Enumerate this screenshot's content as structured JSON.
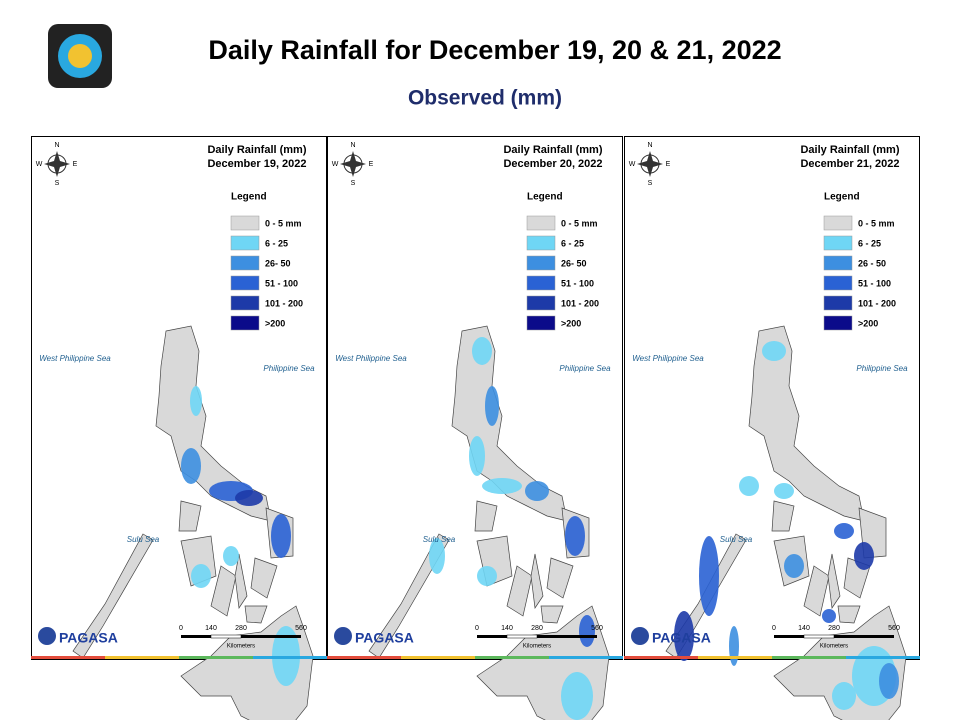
{
  "header": {
    "title": "Daily Rainfall for December 19, 20 & 21, 2022",
    "subtitle": "Observed (mm)"
  },
  "panels": [
    {
      "title": "Daily Rainfall (mm)",
      "date": "December 19, 2022",
      "legend_title": "Legend",
      "legend": [
        {
          "label": "0 - 5 mm",
          "color": "#d9d9d9"
        },
        {
          "label": "6 - 25",
          "color": "#6fd6f5"
        },
        {
          "label": "26- 50",
          "color": "#3d8fe0"
        },
        {
          "label": "51 - 100",
          "color": "#2a62d4"
        },
        {
          "label": "101 - 200",
          "color": "#1d3aa8"
        },
        {
          "label": ">200",
          "color": "#0b0b8a"
        }
      ],
      "seas": [
        "West Philippine Sea",
        "Philippine Sea",
        "Sulu Sea"
      ],
      "compass": [
        "N",
        "E",
        "S",
        "W"
      ],
      "scale": [
        "0",
        "140",
        "280",
        "560"
      ],
      "scale_unit": "Kilometers",
      "logo": "PAGASA"
    },
    {
      "title": "Daily Rainfall (mm)",
      "date": "December 20, 2022",
      "legend_title": "Legend",
      "legend": [
        {
          "label": "0 - 5 mm",
          "color": "#d9d9d9"
        },
        {
          "label": "6 - 25",
          "color": "#6fd6f5"
        },
        {
          "label": "26- 50",
          "color": "#3d8fe0"
        },
        {
          "label": "51 - 100",
          "color": "#2a62d4"
        },
        {
          "label": "101 - 200",
          "color": "#1d3aa8"
        },
        {
          "label": ">200",
          "color": "#0b0b8a"
        }
      ],
      "seas": [
        "West Philippine Sea",
        "Philippine Sea",
        "Sulu Sea"
      ],
      "compass": [
        "N",
        "E",
        "S",
        "W"
      ],
      "scale": [
        "0",
        "140",
        "280",
        "560"
      ],
      "scale_unit": "Kilometers",
      "logo": "PAGASA"
    },
    {
      "title": "Daily Rainfall (mm)",
      "date": "December 21, 2022",
      "legend_title": "Legend",
      "legend": [
        {
          "label": "0 - 5 mm",
          "color": "#d9d9d9"
        },
        {
          "label": "6 - 25",
          "color": "#6fd6f5"
        },
        {
          "label": "26 - 50",
          "color": "#3d8fe0"
        },
        {
          "label": "51 - 100",
          "color": "#2a62d4"
        },
        {
          "label": "101 - 200",
          "color": "#1d3aa8"
        },
        {
          "label": ">200",
          "color": "#0b0b8a"
        }
      ],
      "seas": [
        "West Philippine Sea",
        "Philippine Sea",
        "Sulu Sea"
      ],
      "compass": [
        "N",
        "E",
        "S",
        "W"
      ],
      "scale": [
        "0",
        "140",
        "280",
        "560"
      ],
      "scale_unit": "Kilometers",
      "logo": "PAGASA"
    }
  ]
}
